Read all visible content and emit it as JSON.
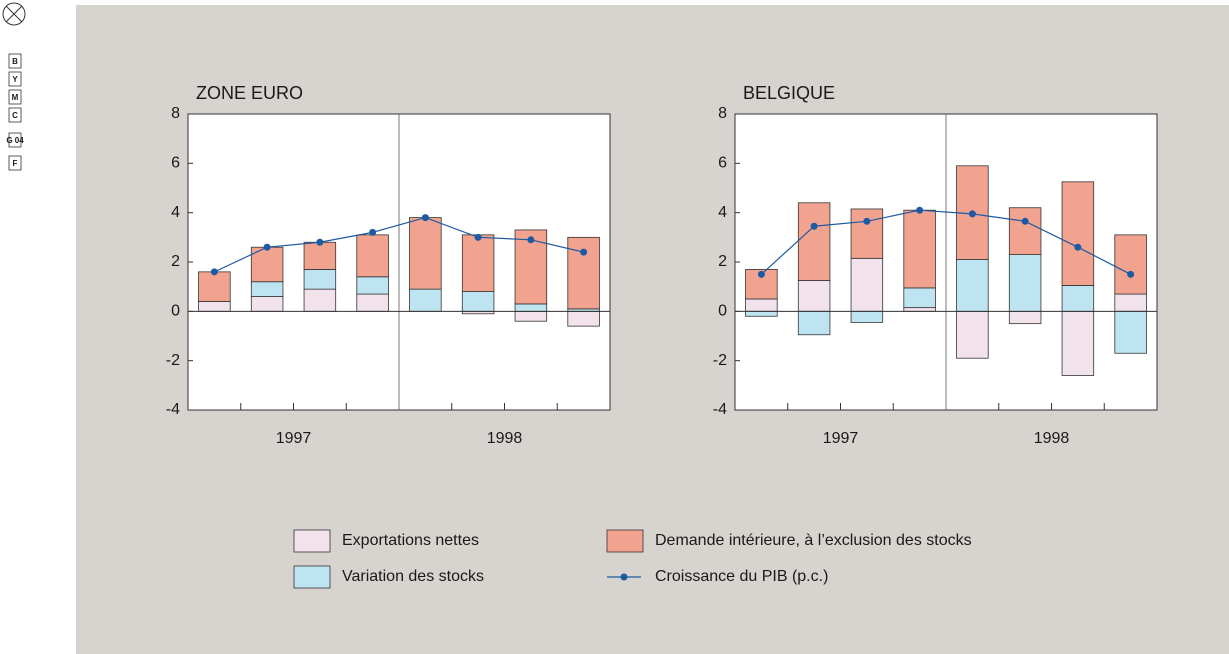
{
  "print_marks": [
    "B",
    "Y",
    "M",
    "C",
    "G 04",
    "F"
  ],
  "chart_data": [
    {
      "type": "bar",
      "title": "ZONE EURO",
      "categories": [
        null,
        null,
        null,
        null,
        null,
        null,
        null,
        null
      ],
      "group_labels": [
        "1997",
        "1998"
      ],
      "ylim": [
        -4,
        8
      ],
      "yticks": [
        -4,
        -2,
        0,
        2,
        4,
        6,
        8
      ],
      "series": [
        {
          "name": "Exportations nettes",
          "color": "#f2e2ec",
          "values": [
            0.4,
            0.6,
            0.9,
            0.7,
            0,
            -0.1,
            -0.4,
            -0.6
          ]
        },
        {
          "name": "Variation des stocks",
          "color": "#bde4f0",
          "values": [
            0,
            0.6,
            0.8,
            0.7,
            0.9,
            0.8,
            0.3,
            0.1
          ]
        },
        {
          "name": "Demande intérieure, à l’exclusion des stocks",
          "color": "#f2a390",
          "values": [
            1.2,
            1.4,
            1.1,
            1.7,
            2.9,
            2.3,
            3.0,
            2.9
          ]
        },
        {
          "name": "Croissance du PIB (p.c.)",
          "type": "line",
          "color": "#1c5aa3",
          "values": [
            1.6,
            2.6,
            2.8,
            3.2,
            3.8,
            3.0,
            2.9,
            2.4
          ]
        }
      ]
    },
    {
      "type": "bar",
      "title": "BELGIQUE",
      "categories": [
        null,
        null,
        null,
        null,
        null,
        null,
        null,
        null
      ],
      "group_labels": [
        "1997",
        "1998"
      ],
      "ylim": [
        -4,
        8
      ],
      "yticks": [
        -4,
        -2,
        0,
        2,
        4,
        6,
        8
      ],
      "series": [
        {
          "color": "#f2e2ec",
          "values": [
            0.5,
            1.25,
            2.15,
            0.15,
            -1.9,
            -0.5,
            -2.6,
            0.7
          ]
        },
        {
          "color": "#bde4f0",
          "values": [
            -0.2,
            -0.95,
            -0.45,
            0.8,
            2.1,
            2.3,
            1.05,
            -1.7
          ]
        },
        {
          "color": "#f2a390",
          "values": [
            1.2,
            3.15,
            2.0,
            3.15,
            3.8,
            1.9,
            4.2,
            2.4
          ]
        },
        {
          "type": "line",
          "color": "#1c5aa3",
          "values": [
            1.5,
            3.45,
            3.65,
            4.1,
            3.95,
            3.65,
            2.6,
            1.5
          ]
        }
      ]
    }
  ]
}
